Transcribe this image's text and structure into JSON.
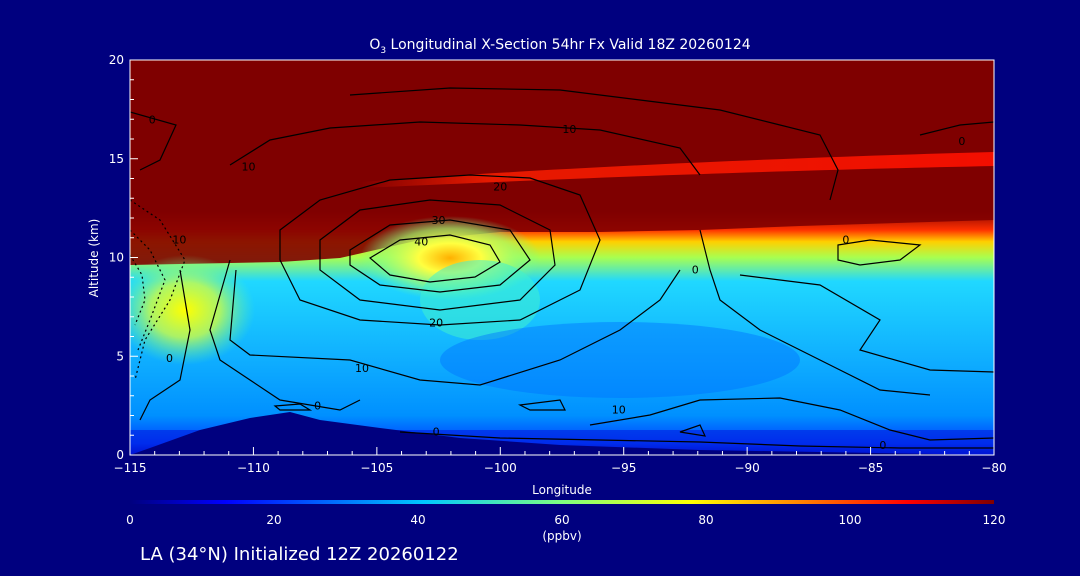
{
  "page": {
    "title_main": "O",
    "title_sub": "3",
    "title_rest": " Longitudinal X-Section 54hr  Fx Valid 18Z 20260124",
    "footer": "LA (34°N) Initialized 12Z 20260122"
  },
  "colors": {
    "background": "#00007f",
    "stratosphere": "#7f0000",
    "terrain": "#00007f",
    "contour": "#000000",
    "text": "#ffffff"
  },
  "chart_data": {
    "type": "heatmap",
    "title": "O3 Longitudinal X-Section 54hr  Fx Valid 18Z 20260124",
    "xlabel": "Longitude",
    "ylabel": "Altitude (km)",
    "xlim": [
      -115,
      -80
    ],
    "ylim": [
      0,
      20
    ],
    "x_ticks": [
      -115,
      -110,
      -105,
      -100,
      -95,
      -90,
      -85,
      -80
    ],
    "x_tick_labels": [
      "−115",
      "−110",
      "−105",
      "−100",
      "−95",
      "−90",
      "−85",
      "−80"
    ],
    "y_ticks": [
      0,
      5,
      10,
      15,
      20
    ],
    "colorbar": {
      "label": "(ppbv)",
      "range": [
        0,
        120
      ],
      "ticks": [
        0,
        20,
        40,
        60,
        80,
        100,
        120
      ]
    },
    "contour_labels": [
      {
        "text": "0",
        "lon": -114.1,
        "alt": 17.0
      },
      {
        "text": "10",
        "lon": -110.2,
        "alt": 14.6
      },
      {
        "text": "10",
        "lon": -97.2,
        "alt": 16.5
      },
      {
        "text": "0",
        "lon": -81.3,
        "alt": 15.9
      },
      {
        "text": "20",
        "lon": -100.0,
        "alt": 13.6
      },
      {
        "text": "30",
        "lon": -102.5,
        "alt": 11.9
      },
      {
        "text": "40",
        "lon": -103.2,
        "alt": 10.8
      },
      {
        "text": "10",
        "lon": -113.0,
        "alt": 10.9
      },
      {
        "text": "0",
        "lon": -86.0,
        "alt": 10.9
      },
      {
        "text": "0",
        "lon": -92.1,
        "alt": 9.4
      },
      {
        "text": "20",
        "lon": -102.6,
        "alt": 6.7
      },
      {
        "text": "0",
        "lon": -113.4,
        "alt": 4.9
      },
      {
        "text": "10",
        "lon": -105.6,
        "alt": 4.4
      },
      {
        "text": "0",
        "lon": -107.4,
        "alt": 2.5
      },
      {
        "text": "10",
        "lon": -95.2,
        "alt": 2.3
      },
      {
        "text": "0",
        "lon": -102.6,
        "alt": 1.2
      },
      {
        "text": "0",
        "lon": -84.5,
        "alt": 0.5
      }
    ]
  }
}
